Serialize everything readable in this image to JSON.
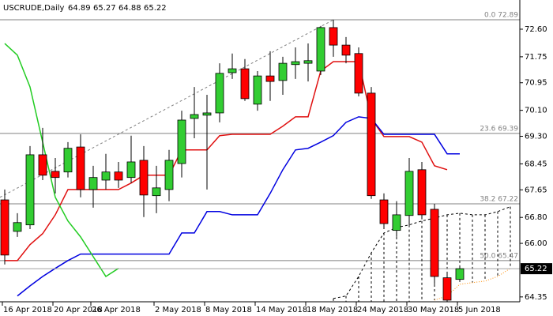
{
  "chart_data": {
    "type": "candlestick",
    "title": "USCRUDE,Daily",
    "categories": [
      "16 Apr 2018",
      null,
      null,
      null,
      "20 Apr 2018",
      null,
      null,
      "26 Apr 2018",
      null,
      null,
      null,
      null,
      "2 May 2018",
      null,
      null,
      null,
      "8 May 2018",
      null,
      null,
      null,
      "14 May 2018",
      null,
      null,
      null,
      "18 May 2018",
      null,
      null,
      null,
      "24 May 2018",
      null,
      null,
      null,
      "30 May 2018",
      null,
      null,
      null,
      "5 Jun 2018",
      null,
      null,
      null,
      null
    ],
    "open": [
      67.34,
      66.37,
      66.57,
      68.73,
      68.22,
      68.2,
      68.97,
      67.66,
      67.95,
      68.2,
      68.03,
      68.56,
      67.47,
      67.66,
      68.46,
      69.85,
      69.95,
      70.02,
      71.26,
      71.38,
      70.29,
      71.16,
      71.02,
      71.51,
      71.55,
      71.31,
      72.65,
      72.11,
      71.85,
      70.63,
      67.34,
      66.4,
      66.86,
      68.27,
      67.05,
      64.94,
      64.89,
      null,
      null,
      null,
      null
    ],
    "high": [
      67.66,
      66.93,
      69.0,
      69.56,
      68.63,
      69.12,
      69.36,
      68.39,
      68.76,
      68.51,
      69.32,
      69.0,
      68.39,
      68.88,
      70.09,
      70.82,
      70.58,
      71.55,
      71.85,
      71.68,
      71.31,
      71.92,
      71.75,
      72.04,
      72.16,
      72.7,
      72.89,
      72.36,
      72.04,
      70.82,
      67.54,
      67.3,
      68.63,
      68.51,
      67.22,
      65.11,
      65.27,
      null,
      null,
      null,
      null
    ],
    "low": [
      65.35,
      66.2,
      66.44,
      67.95,
      67.54,
      68.03,
      67.42,
      67.1,
      67.66,
      67.71,
      67.86,
      66.81,
      66.93,
      67.3,
      68.03,
      69.24,
      67.66,
      69.73,
      71.07,
      70.39,
      70.09,
      70.39,
      70.58,
      71.07,
      70.99,
      71.19,
      71.75,
      71.55,
      70.53,
      67.37,
      66.44,
      66.2,
      66.57,
      66.74,
      64.74,
      64.2,
      64.88,
      null,
      null,
      null,
      null
    ],
    "close": [
      65.64,
      66.64,
      68.73,
      68.1,
      68.03,
      68.93,
      67.66,
      68.03,
      68.2,
      67.95,
      68.51,
      67.49,
      67.71,
      68.56,
      69.8,
      69.97,
      70.02,
      71.24,
      71.38,
      70.46,
      71.16,
      70.99,
      71.55,
      71.6,
      71.63,
      72.65,
      72.11,
      71.8,
      70.63,
      67.47,
      66.61,
      66.88,
      68.22,
      66.88,
      64.98,
      64.25,
      65.22,
      null,
      null,
      null,
      null
    ],
    "up_color": "#32cd32",
    "down_color": "#ff0000",
    "indicators": [
      {
        "color": "#e01010",
        "style": "solid",
        "values": [
          65.47,
          65.47,
          65.96,
          66.3,
          66.88,
          67.66,
          67.66,
          67.66,
          67.66,
          67.66,
          67.86,
          68.1,
          68.1,
          68.1,
          68.88,
          68.88,
          68.88,
          69.32,
          69.36,
          69.36,
          69.36,
          69.36,
          69.61,
          69.9,
          69.9,
          71.31,
          71.6,
          71.6,
          71.6,
          69.85,
          69.29,
          69.29,
          69.29,
          69.12,
          68.39,
          68.27,
          null,
          null,
          null,
          null,
          null
        ]
      },
      {
        "color": "#0000e0",
        "style": "solid",
        "values": [
          null,
          64.38,
          64.69,
          64.98,
          65.23,
          65.47,
          65.67,
          65.67,
          65.67,
          65.67,
          65.67,
          65.67,
          65.67,
          65.67,
          66.32,
          66.32,
          66.98,
          66.98,
          66.88,
          66.88,
          66.88,
          67.54,
          68.27,
          68.88,
          68.93,
          69.12,
          69.32,
          69.73,
          69.9,
          69.85,
          69.36,
          69.36,
          69.36,
          69.36,
          69.36,
          68.76,
          68.76,
          null,
          null,
          null,
          null
        ]
      },
      {
        "color": "#22cc22",
        "style": "solid",
        "values": [
          72.16,
          71.8,
          70.82,
          69.12,
          67.42,
          66.69,
          66.2,
          65.59,
          64.98,
          65.23,
          null,
          null,
          null,
          null,
          null,
          null,
          null,
          null,
          null,
          null,
          null,
          null,
          null,
          null,
          null,
          null,
          null,
          null,
          null,
          null,
          null,
          null,
          null,
          null,
          null,
          null,
          null,
          null,
          null,
          null,
          null
        ]
      },
      {
        "color": "#000000",
        "style": "dashed",
        "values": [
          null,
          null,
          null,
          null,
          null,
          null,
          null,
          null,
          null,
          null,
          null,
          null,
          null,
          null,
          null,
          null,
          null,
          null,
          null,
          null,
          null,
          null,
          null,
          null,
          null,
          null,
          64.3,
          64.38,
          64.98,
          65.71,
          66.32,
          66.49,
          66.57,
          66.69,
          66.78,
          66.88,
          66.93,
          66.88,
          66.88,
          66.98,
          67.13
        ]
      },
      {
        "color": "#ff8c00",
        "style": "dotted",
        "values": [
          null,
          null,
          null,
          null,
          null,
          null,
          null,
          null,
          null,
          null,
          null,
          null,
          null,
          null,
          null,
          null,
          null,
          null,
          null,
          null,
          null,
          null,
          null,
          null,
          null,
          null,
          null,
          null,
          null,
          null,
          null,
          null,
          null,
          null,
          64.25,
          64.38,
          64.74,
          64.79,
          64.84,
          64.98,
          65.23
        ]
      }
    ],
    "trend_line": {
      "color": "#808080",
      "values": [
        67.42,
        72.89
      ]
    },
    "fib_levels": [
      {
        "label": "0.0 72.89",
        "value": 72.89
      },
      {
        "label": "23.6 69.39",
        "value": 69.39
      },
      {
        "label": "38.2 67.22",
        "value": 67.22
      },
      {
        "label": "50.0 65.47",
        "value": 65.47
      }
    ],
    "ylim": [
      64.2,
      73.5
    ],
    "yticks": [
      {
        "value": 72.6,
        "label": "72.60"
      },
      71.75,
      70.95,
      {
        "value": 70.1,
        "label": "70.10"
      },
      {
        "value": 69.3,
        "label": "69.30"
      },
      68.45,
      67.65,
      {
        "value": 66.8,
        "label": "66.80"
      },
      {
        "value": 66,
        "label": "66.00"
      },
      64.35
    ]
  }
}
